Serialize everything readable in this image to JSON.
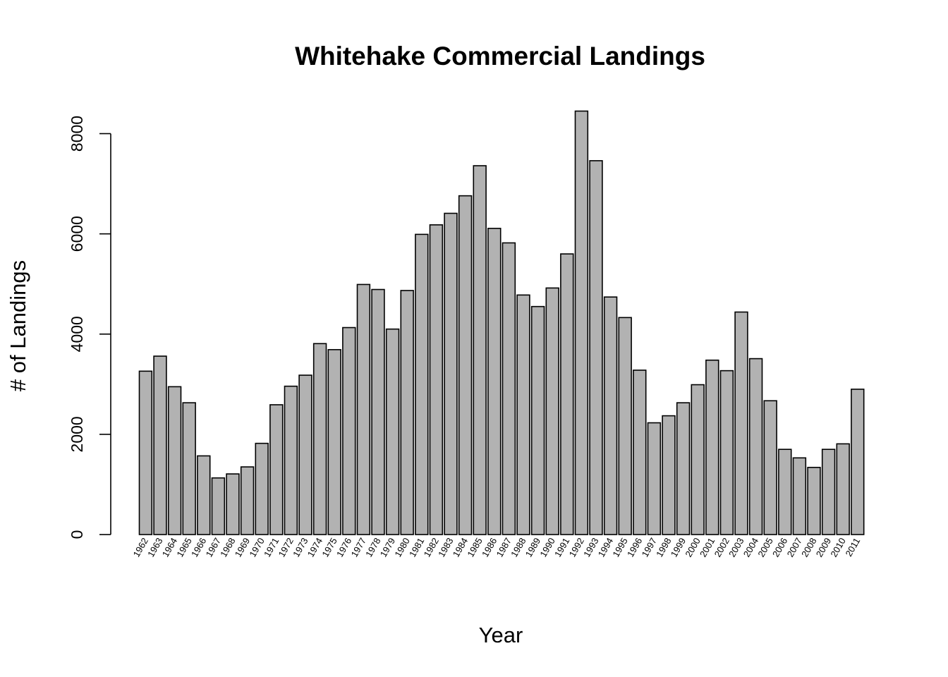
{
  "chart_data": {
    "type": "bar",
    "title": "Whitehake Commercial Landings",
    "xlabel": "Year",
    "ylabel": "# of Landings",
    "ylim": [
      0,
      8500
    ],
    "yticks": [
      0,
      2000,
      4000,
      6000,
      8000
    ],
    "grid": false,
    "bar_color": "#b2b2b2",
    "categories": [
      "1962",
      "1963",
      "1964",
      "1965",
      "1966",
      "1967",
      "1968",
      "1969",
      "1970",
      "1971",
      "1972",
      "1973",
      "1974",
      "1975",
      "1976",
      "1977",
      "1978",
      "1979",
      "1980",
      "1981",
      "1982",
      "1983",
      "1984",
      "1985",
      "1986",
      "1987",
      "1988",
      "1989",
      "1990",
      "1991",
      "1992",
      "1993",
      "1994",
      "1995",
      "1996",
      "1997",
      "1998",
      "1999",
      "2000",
      "2001",
      "2002",
      "2003",
      "2004",
      "2005",
      "2006",
      "2007",
      "2008",
      "2009",
      "2010",
      "2011"
    ],
    "values": [
      3260,
      3560,
      2950,
      2630,
      1570,
      1130,
      1210,
      1350,
      1820,
      2590,
      2960,
      3180,
      3810,
      3690,
      4130,
      4990,
      4890,
      4100,
      4870,
      5990,
      6180,
      6410,
      6760,
      7360,
      6110,
      5820,
      4780,
      4550,
      4920,
      5600,
      8450,
      7460,
      4740,
      4330,
      3280,
      2230,
      2370,
      2630,
      2990,
      3480,
      3270,
      4440,
      3510,
      2670,
      1700,
      1530,
      1340,
      1700,
      1810,
      2900
    ]
  }
}
